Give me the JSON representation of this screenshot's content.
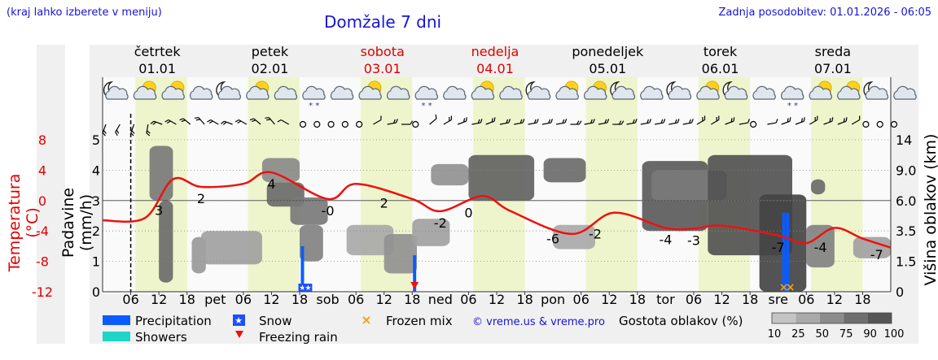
{
  "header": {
    "hint": "(kraj lahko izberete v meniju)",
    "title": "Domžale 7 dni",
    "updated": "Zadnja posodobitev: 01.01.2026 - 06:05"
  },
  "axes": {
    "left_temp_label": "Temperatura (°C)",
    "left_precip_label": "Padavine (mm/h)",
    "right_label": "Višina oblakov (km)"
  },
  "legend": {
    "precipitation": "Precipitation",
    "showers": "Showers",
    "snow": "Snow",
    "freezing_rain": "Freezing rain",
    "frozen_mix": "Frozen mix",
    "credit": "© vreme.us & vreme.pro",
    "cloud_title": "Gostota oblakov (%)",
    "cloud_scale": [
      "10",
      "25",
      "50",
      "75",
      "90",
      "100"
    ]
  },
  "colors": {
    "temperature": "#ee1111",
    "precipitation": "#0a5cff",
    "showers": "#1ed6c8",
    "snow": "#1e50ff",
    "freezing_rain": "#ee1111",
    "frozen_mix": "#f5a000",
    "day_band": "#eef5cc",
    "hint_text": "#1515d6",
    "weekend": "#e00000"
  },
  "chart_data": {
    "type": "line",
    "title": "Domžale 7 dni",
    "days": [
      {
        "name": "četrtek",
        "date": "01.01",
        "weekend": false
      },
      {
        "name": "petek",
        "date": "02.01",
        "weekend": false
      },
      {
        "name": "sobota",
        "date": "03.01",
        "weekend": true
      },
      {
        "name": "nedelja",
        "date": "04.01",
        "weekend": true
      },
      {
        "name": "ponedeljek",
        "date": "05.01",
        "weekend": false
      },
      {
        "name": "torek",
        "date": "06.01",
        "weekend": false
      },
      {
        "name": "sreda",
        "date": "07.01",
        "weekend": false
      }
    ],
    "x_hour_ticks": [
      "06",
      "12",
      "18"
    ],
    "x_day_abbr": [
      "pet",
      "sob",
      "ned",
      "pon",
      "tor",
      "sre"
    ],
    "temp_axis": {
      "ticks": [
        "8",
        "4",
        "0",
        "-4",
        "-8",
        "-12"
      ],
      "ylim": [
        -12,
        8
      ]
    },
    "precip_axis": {
      "ticks": [
        "5",
        "4",
        "3",
        "2",
        "1",
        "0"
      ],
      "ylim": [
        0,
        5
      ]
    },
    "cloud_axis": {
      "ticks": [
        "14",
        "9.0",
        "6.0",
        "3.5",
        "1.5",
        "0"
      ]
    },
    "series": [
      {
        "name": "Temperatura (°C)",
        "hours": [
          0,
          9,
          15,
          21,
          30,
          36,
          48,
          54,
          66,
          72,
          81,
          87,
          100,
          109,
          120,
          126,
          132,
          144,
          150,
          156,
          162,
          168
        ],
        "values": [
          -2.6,
          -2.3,
          2.8,
          1.8,
          2.2,
          3.7,
          0.2,
          2.2,
          0.2,
          -1.4,
          0.6,
          -1.4,
          -4.4,
          -1.6,
          -3.6,
          -3.7,
          -3.3,
          -4.6,
          -5.6,
          -3.6,
          -5.0,
          -6.2
        ]
      }
    ],
    "temp_labels": [
      {
        "hour": 12,
        "text": "3"
      },
      {
        "hour": 21,
        "text": "2"
      },
      {
        "hour": 36,
        "text": "4"
      },
      {
        "hour": 48,
        "text": "-0"
      },
      {
        "hour": 60,
        "text": "2"
      },
      {
        "hour": 72,
        "text": "-2"
      },
      {
        "hour": 78,
        "text": "0"
      },
      {
        "hour": 96,
        "text": "-6"
      },
      {
        "hour": 105,
        "text": "-2"
      },
      {
        "hour": 120,
        "text": "-4"
      },
      {
        "hour": 126,
        "text": "-3"
      },
      {
        "hour": 144,
        "text": "-7"
      },
      {
        "hour": 153,
        "text": "-4"
      },
      {
        "hour": 165,
        "text": "-7"
      }
    ],
    "precipitation_bars": [
      {
        "hour": 42.6,
        "value": 1.5,
        "kind": "rain"
      },
      {
        "hour": 66.5,
        "value": 1.2,
        "kind": "rain"
      },
      {
        "hour": 145.2,
        "value": 2.6,
        "kind": "rain"
      },
      {
        "hour": 146.0,
        "value": 2.6,
        "kind": "rain"
      }
    ],
    "precip_markers": [
      {
        "hour": 42.6,
        "kind": "snow"
      },
      {
        "hour": 43.8,
        "kind": "snow"
      },
      {
        "hour": 66.5,
        "kind": "freezing_rain"
      },
      {
        "hour": 145.2,
        "kind": "frozen_mix"
      },
      {
        "hour": 146.6,
        "kind": "frozen_mix"
      }
    ],
    "weather_icons": [
      {
        "hour": 1,
        "icon": "moon-cloud-icon"
      },
      {
        "hour": 7,
        "icon": "sun-cloud-icon"
      },
      {
        "hour": 13,
        "icon": "sun-cloud-icon"
      },
      {
        "hour": 19,
        "icon": "cloud-icon"
      },
      {
        "hour": 25,
        "icon": "moon-cloud-icon"
      },
      {
        "hour": 31,
        "icon": "sun-cloud-icon"
      },
      {
        "hour": 37,
        "icon": "cloud-icon"
      },
      {
        "hour": 43,
        "icon": "snow-cloud-icon"
      },
      {
        "hour": 49,
        "icon": "cloud-icon"
      },
      {
        "hour": 55,
        "icon": "sun-cloud-icon"
      },
      {
        "hour": 61,
        "icon": "cloud-icon"
      },
      {
        "hour": 67,
        "icon": "snow-cloud-icon"
      },
      {
        "hour": 73,
        "icon": "cloud-icon"
      },
      {
        "hour": 79,
        "icon": "sun-cloud-icon"
      },
      {
        "hour": 85,
        "icon": "cloud-icon"
      },
      {
        "hour": 91,
        "icon": "moon-cloud-icon"
      },
      {
        "hour": 97,
        "icon": "sun-cloud-icon"
      },
      {
        "hour": 103,
        "icon": "sun-cloud-icon"
      },
      {
        "hour": 109,
        "icon": "moon-cloud-icon"
      },
      {
        "hour": 115,
        "icon": "cloud-icon"
      },
      {
        "hour": 121,
        "icon": "moon-cloud-icon"
      },
      {
        "hour": 127,
        "icon": "sun-cloud-icon"
      },
      {
        "hour": 133,
        "icon": "moon-cloud-icon"
      },
      {
        "hour": 139,
        "icon": "cloud-icon"
      },
      {
        "hour": 145,
        "icon": "snow-cloud-icon"
      },
      {
        "hour": 151,
        "icon": "sun-cloud-icon"
      },
      {
        "hour": 157,
        "icon": "sun-cloud-icon"
      },
      {
        "hour": 163,
        "icon": "moon-cloud-icon"
      },
      {
        "hour": 169,
        "icon": "cloud-icon"
      }
    ],
    "wind_barbs": [
      {
        "hour": 0,
        "dir": 200,
        "speed": 2
      },
      {
        "hour": 3,
        "dir": 210,
        "speed": 2
      },
      {
        "hour": 6,
        "dir": 200,
        "speed": 2
      },
      {
        "hour": 9,
        "dir": 190,
        "speed": 2
      },
      {
        "hour": 12,
        "dir": 290,
        "speed": 2
      },
      {
        "hour": 15,
        "dir": 300,
        "speed": 2
      },
      {
        "hour": 18,
        "dir": 310,
        "speed": 2
      },
      {
        "hour": 21,
        "dir": 320,
        "speed": 2
      },
      {
        "hour": 24,
        "dir": 300,
        "speed": 2
      },
      {
        "hour": 27,
        "dir": 290,
        "speed": 2
      },
      {
        "hour": 30,
        "dir": 300,
        "speed": 2
      },
      {
        "hour": 33,
        "dir": 310,
        "speed": 2
      },
      {
        "hour": 36,
        "dir": 320,
        "speed": 2
      },
      {
        "hour": 39,
        "dir": 300,
        "speed": 1
      },
      {
        "hour": 42,
        "dir": 0,
        "speed": 0
      },
      {
        "hour": 45,
        "dir": 0,
        "speed": 0
      },
      {
        "hour": 48,
        "dir": 0,
        "speed": 0
      },
      {
        "hour": 51,
        "dir": 0,
        "speed": 0
      },
      {
        "hour": 54,
        "dir": 0,
        "speed": 0
      },
      {
        "hour": 57,
        "dir": 60,
        "speed": 1
      },
      {
        "hour": 60,
        "dir": 80,
        "speed": 2
      },
      {
        "hour": 63,
        "dir": 90,
        "speed": 1
      },
      {
        "hour": 66,
        "dir": 0,
        "speed": 0
      },
      {
        "hour": 69,
        "dir": 50,
        "speed": 1
      },
      {
        "hour": 72,
        "dir": 60,
        "speed": 2
      },
      {
        "hour": 75,
        "dir": 70,
        "speed": 2
      },
      {
        "hour": 78,
        "dir": 80,
        "speed": 2
      },
      {
        "hour": 81,
        "dir": 70,
        "speed": 2
      },
      {
        "hour": 84,
        "dir": 80,
        "speed": 2
      },
      {
        "hour": 87,
        "dir": 80,
        "speed": 2
      },
      {
        "hour": 90,
        "dir": 80,
        "speed": 2
      },
      {
        "hour": 93,
        "dir": 80,
        "speed": 2
      },
      {
        "hour": 96,
        "dir": 80,
        "speed": 2
      },
      {
        "hour": 99,
        "dir": 90,
        "speed": 2
      },
      {
        "hour": 102,
        "dir": 80,
        "speed": 2
      },
      {
        "hour": 105,
        "dir": 80,
        "speed": 2
      },
      {
        "hour": 108,
        "dir": 90,
        "speed": 2
      },
      {
        "hour": 111,
        "dir": 80,
        "speed": 2
      },
      {
        "hour": 114,
        "dir": 80,
        "speed": 2
      },
      {
        "hour": 117,
        "dir": 80,
        "speed": 2
      },
      {
        "hour": 120,
        "dir": 80,
        "speed": 2
      },
      {
        "hour": 123,
        "dir": 80,
        "speed": 2
      },
      {
        "hour": 126,
        "dir": 60,
        "speed": 2
      },
      {
        "hour": 129,
        "dir": 60,
        "speed": 2
      },
      {
        "hour": 132,
        "dir": 70,
        "speed": 2
      },
      {
        "hour": 135,
        "dir": 80,
        "speed": 1
      },
      {
        "hour": 138,
        "dir": 0,
        "speed": 0
      },
      {
        "hour": 141,
        "dir": 80,
        "speed": 1
      },
      {
        "hour": 144,
        "dir": 70,
        "speed": 2
      },
      {
        "hour": 147,
        "dir": 70,
        "speed": 2
      },
      {
        "hour": 150,
        "dir": 60,
        "speed": 2
      },
      {
        "hour": 153,
        "dir": 70,
        "speed": 2
      },
      {
        "hour": 156,
        "dir": 70,
        "speed": 2
      },
      {
        "hour": 159,
        "dir": 60,
        "speed": 1
      },
      {
        "hour": 162,
        "dir": 0,
        "speed": 0
      },
      {
        "hour": 165,
        "dir": 0,
        "speed": 0
      },
      {
        "hour": 168,
        "dir": 0,
        "speed": 0
      }
    ],
    "cloud_density": [
      {
        "h0": 10,
        "h1": 15,
        "c0": 3.0,
        "c1": 4.8,
        "density": 60
      },
      {
        "h0": 12,
        "h1": 15,
        "c0": 0.3,
        "c1": 3.0,
        "density": 70
      },
      {
        "h0": 19,
        "h1": 22,
        "c0": 0.6,
        "c1": 1.8,
        "density": 40
      },
      {
        "h0": 21,
        "h1": 34,
        "c0": 0.9,
        "c1": 2.0,
        "density": 35
      },
      {
        "h0": 34,
        "h1": 42,
        "c0": 3.6,
        "c1": 4.4,
        "density": 50
      },
      {
        "h0": 35,
        "h1": 43,
        "c0": 2.8,
        "c1": 3.6,
        "density": 70
      },
      {
        "h0": 40,
        "h1": 48,
        "c0": 2.2,
        "c1": 3.1,
        "density": 60
      },
      {
        "h0": 42,
        "h1": 47,
        "c0": 1.0,
        "c1": 2.2,
        "density": 55
      },
      {
        "h0": 52,
        "h1": 62,
        "c0": 1.2,
        "c1": 2.2,
        "density": 30
      },
      {
        "h0": 60,
        "h1": 67,
        "c0": 0.6,
        "c1": 1.9,
        "density": 45
      },
      {
        "h0": 66,
        "h1": 74,
        "c0": 1.5,
        "c1": 2.4,
        "density": 35
      },
      {
        "h0": 70,
        "h1": 78,
        "c0": 3.5,
        "c1": 4.2,
        "density": 45
      },
      {
        "h0": 78,
        "h1": 92,
        "c0": 3.0,
        "c1": 4.5,
        "density": 75
      },
      {
        "h0": 94,
        "h1": 103,
        "c0": 3.6,
        "c1": 4.4,
        "density": 70
      },
      {
        "h0": 96,
        "h1": 105,
        "c0": 1.4,
        "c1": 2.2,
        "density": 30
      },
      {
        "h0": 115,
        "h1": 129,
        "c0": 2.0,
        "c1": 4.3,
        "density": 80
      },
      {
        "h0": 117,
        "h1": 133,
        "c0": 3.0,
        "c1": 4.0,
        "density": 60
      },
      {
        "h0": 129,
        "h1": 147,
        "c0": 1.2,
        "c1": 4.5,
        "density": 85
      },
      {
        "h0": 140,
        "h1": 150,
        "c0": 0.0,
        "c1": 3.2,
        "density": 95
      },
      {
        "h0": 150,
        "h1": 156,
        "c0": 0.8,
        "c1": 2.2,
        "density": 55
      },
      {
        "h0": 160,
        "h1": 168,
        "c0": 1.1,
        "c1": 1.8,
        "density": 35
      },
      {
        "h0": 151,
        "h1": 154,
        "c0": 3.2,
        "c1": 3.7,
        "density": 70
      }
    ]
  }
}
